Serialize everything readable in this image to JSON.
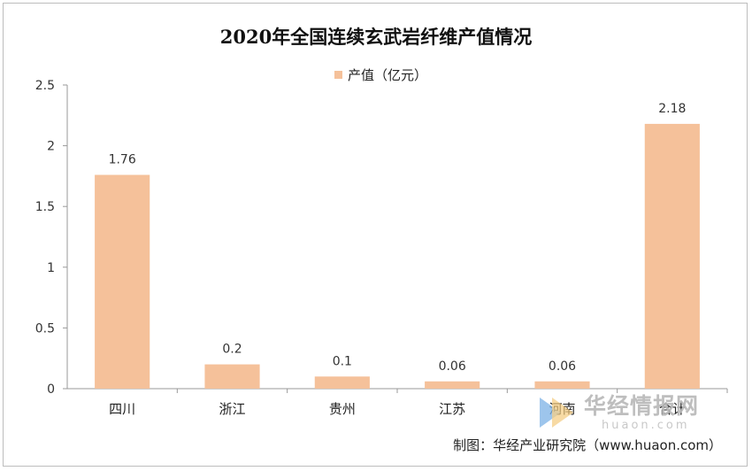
{
  "chart_data": {
    "type": "bar",
    "title": "2020年全国连续玄武岩纤维产值情况",
    "legend": "产值（亿元）",
    "categories": [
      "四川",
      "浙江",
      "贵州",
      "江苏",
      "河南",
      "合计"
    ],
    "series": [
      {
        "name": "产值（亿元）",
        "values": [
          1.76,
          0.2,
          0.1,
          0.06,
          0.06,
          2.18
        ]
      }
    ],
    "data_labels": [
      "1.76",
      "0.2",
      "0.1",
      "0.06",
      "0.06",
      "2.18"
    ],
    "ylim": [
      0,
      2.5
    ],
    "yticks": [
      0,
      0.5,
      1,
      1.5,
      2,
      2.5
    ],
    "ytick_labels": [
      "0",
      "0.5",
      "1",
      "1.5",
      "2",
      "2.5"
    ],
    "grid": false,
    "legend_position": "top-center",
    "bar_color": "#f5c19a"
  },
  "watermark": {
    "text": "华经情报网",
    "url": "huaon.com"
  },
  "source": "制图：华经产业研究院（www.huaon.com）"
}
